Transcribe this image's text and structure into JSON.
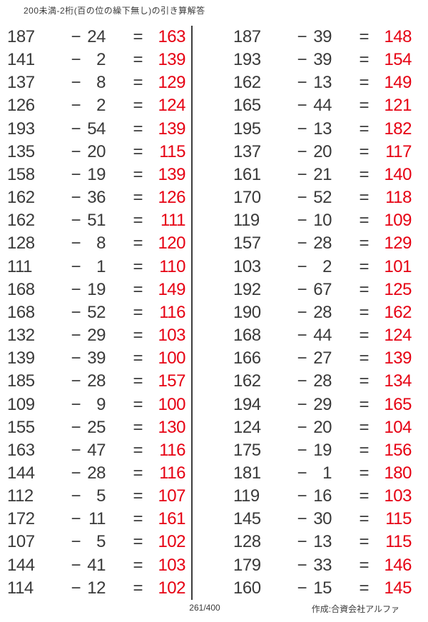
{
  "title": "200未満-2桁(百の位の繰下無し)の引き算解答",
  "symbols": {
    "minus": "−",
    "equals": "="
  },
  "colors": {
    "text": "#3a3a3a",
    "answer_red": "#e60012",
    "divider": "#3c3c3c"
  },
  "worksheet": {
    "left_column": [
      {
        "minuend": 187,
        "subtrahend": 24,
        "difference": 163
      },
      {
        "minuend": 141,
        "subtrahend": 2,
        "difference": 139
      },
      {
        "minuend": 137,
        "subtrahend": 8,
        "difference": 129
      },
      {
        "minuend": 126,
        "subtrahend": 2,
        "difference": 124
      },
      {
        "minuend": 193,
        "subtrahend": 54,
        "difference": 139
      },
      {
        "minuend": 135,
        "subtrahend": 20,
        "difference": 115
      },
      {
        "minuend": 158,
        "subtrahend": 19,
        "difference": 139
      },
      {
        "minuend": 162,
        "subtrahend": 36,
        "difference": 126
      },
      {
        "minuend": 162,
        "subtrahend": 51,
        "difference": 111
      },
      {
        "minuend": 128,
        "subtrahend": 8,
        "difference": 120
      },
      {
        "minuend": 111,
        "subtrahend": 1,
        "difference": 110
      },
      {
        "minuend": 168,
        "subtrahend": 19,
        "difference": 149
      },
      {
        "minuend": 168,
        "subtrahend": 52,
        "difference": 116
      },
      {
        "minuend": 132,
        "subtrahend": 29,
        "difference": 103
      },
      {
        "minuend": 139,
        "subtrahend": 39,
        "difference": 100
      },
      {
        "minuend": 185,
        "subtrahend": 28,
        "difference": 157
      },
      {
        "minuend": 109,
        "subtrahend": 9,
        "difference": 100
      },
      {
        "minuend": 155,
        "subtrahend": 25,
        "difference": 130
      },
      {
        "minuend": 163,
        "subtrahend": 47,
        "difference": 116
      },
      {
        "minuend": 144,
        "subtrahend": 28,
        "difference": 116
      },
      {
        "minuend": 112,
        "subtrahend": 5,
        "difference": 107
      },
      {
        "minuend": 172,
        "subtrahend": 11,
        "difference": 161
      },
      {
        "minuend": 107,
        "subtrahend": 5,
        "difference": 102
      },
      {
        "minuend": 144,
        "subtrahend": 41,
        "difference": 103
      },
      {
        "minuend": 114,
        "subtrahend": 12,
        "difference": 102
      }
    ],
    "right_column": [
      {
        "minuend": 187,
        "subtrahend": 39,
        "difference": 148
      },
      {
        "minuend": 193,
        "subtrahend": 39,
        "difference": 154
      },
      {
        "minuend": 162,
        "subtrahend": 13,
        "difference": 149
      },
      {
        "minuend": 165,
        "subtrahend": 44,
        "difference": 121
      },
      {
        "minuend": 195,
        "subtrahend": 13,
        "difference": 182
      },
      {
        "minuend": 137,
        "subtrahend": 20,
        "difference": 117
      },
      {
        "minuend": 161,
        "subtrahend": 21,
        "difference": 140
      },
      {
        "minuend": 170,
        "subtrahend": 52,
        "difference": 118
      },
      {
        "minuend": 119,
        "subtrahend": 10,
        "difference": 109
      },
      {
        "minuend": 157,
        "subtrahend": 28,
        "difference": 129
      },
      {
        "minuend": 103,
        "subtrahend": 2,
        "difference": 101
      },
      {
        "minuend": 192,
        "subtrahend": 67,
        "difference": 125
      },
      {
        "minuend": 190,
        "subtrahend": 28,
        "difference": 162
      },
      {
        "minuend": 168,
        "subtrahend": 44,
        "difference": 124
      },
      {
        "minuend": 166,
        "subtrahend": 27,
        "difference": 139
      },
      {
        "minuend": 162,
        "subtrahend": 28,
        "difference": 134
      },
      {
        "minuend": 194,
        "subtrahend": 29,
        "difference": 165
      },
      {
        "minuend": 124,
        "subtrahend": 20,
        "difference": 104
      },
      {
        "minuend": 175,
        "subtrahend": 19,
        "difference": 156
      },
      {
        "minuend": 181,
        "subtrahend": 1,
        "difference": 180
      },
      {
        "minuend": 119,
        "subtrahend": 16,
        "difference": 103
      },
      {
        "minuend": 145,
        "subtrahend": 30,
        "difference": 115
      },
      {
        "minuend": 128,
        "subtrahend": 13,
        "difference": 115
      },
      {
        "minuend": 179,
        "subtrahend": 33,
        "difference": 146
      },
      {
        "minuend": 160,
        "subtrahend": 15,
        "difference": 145
      }
    ]
  },
  "footer": {
    "page_number": "261/400",
    "credit": "作成:合資会社アルファ"
  }
}
